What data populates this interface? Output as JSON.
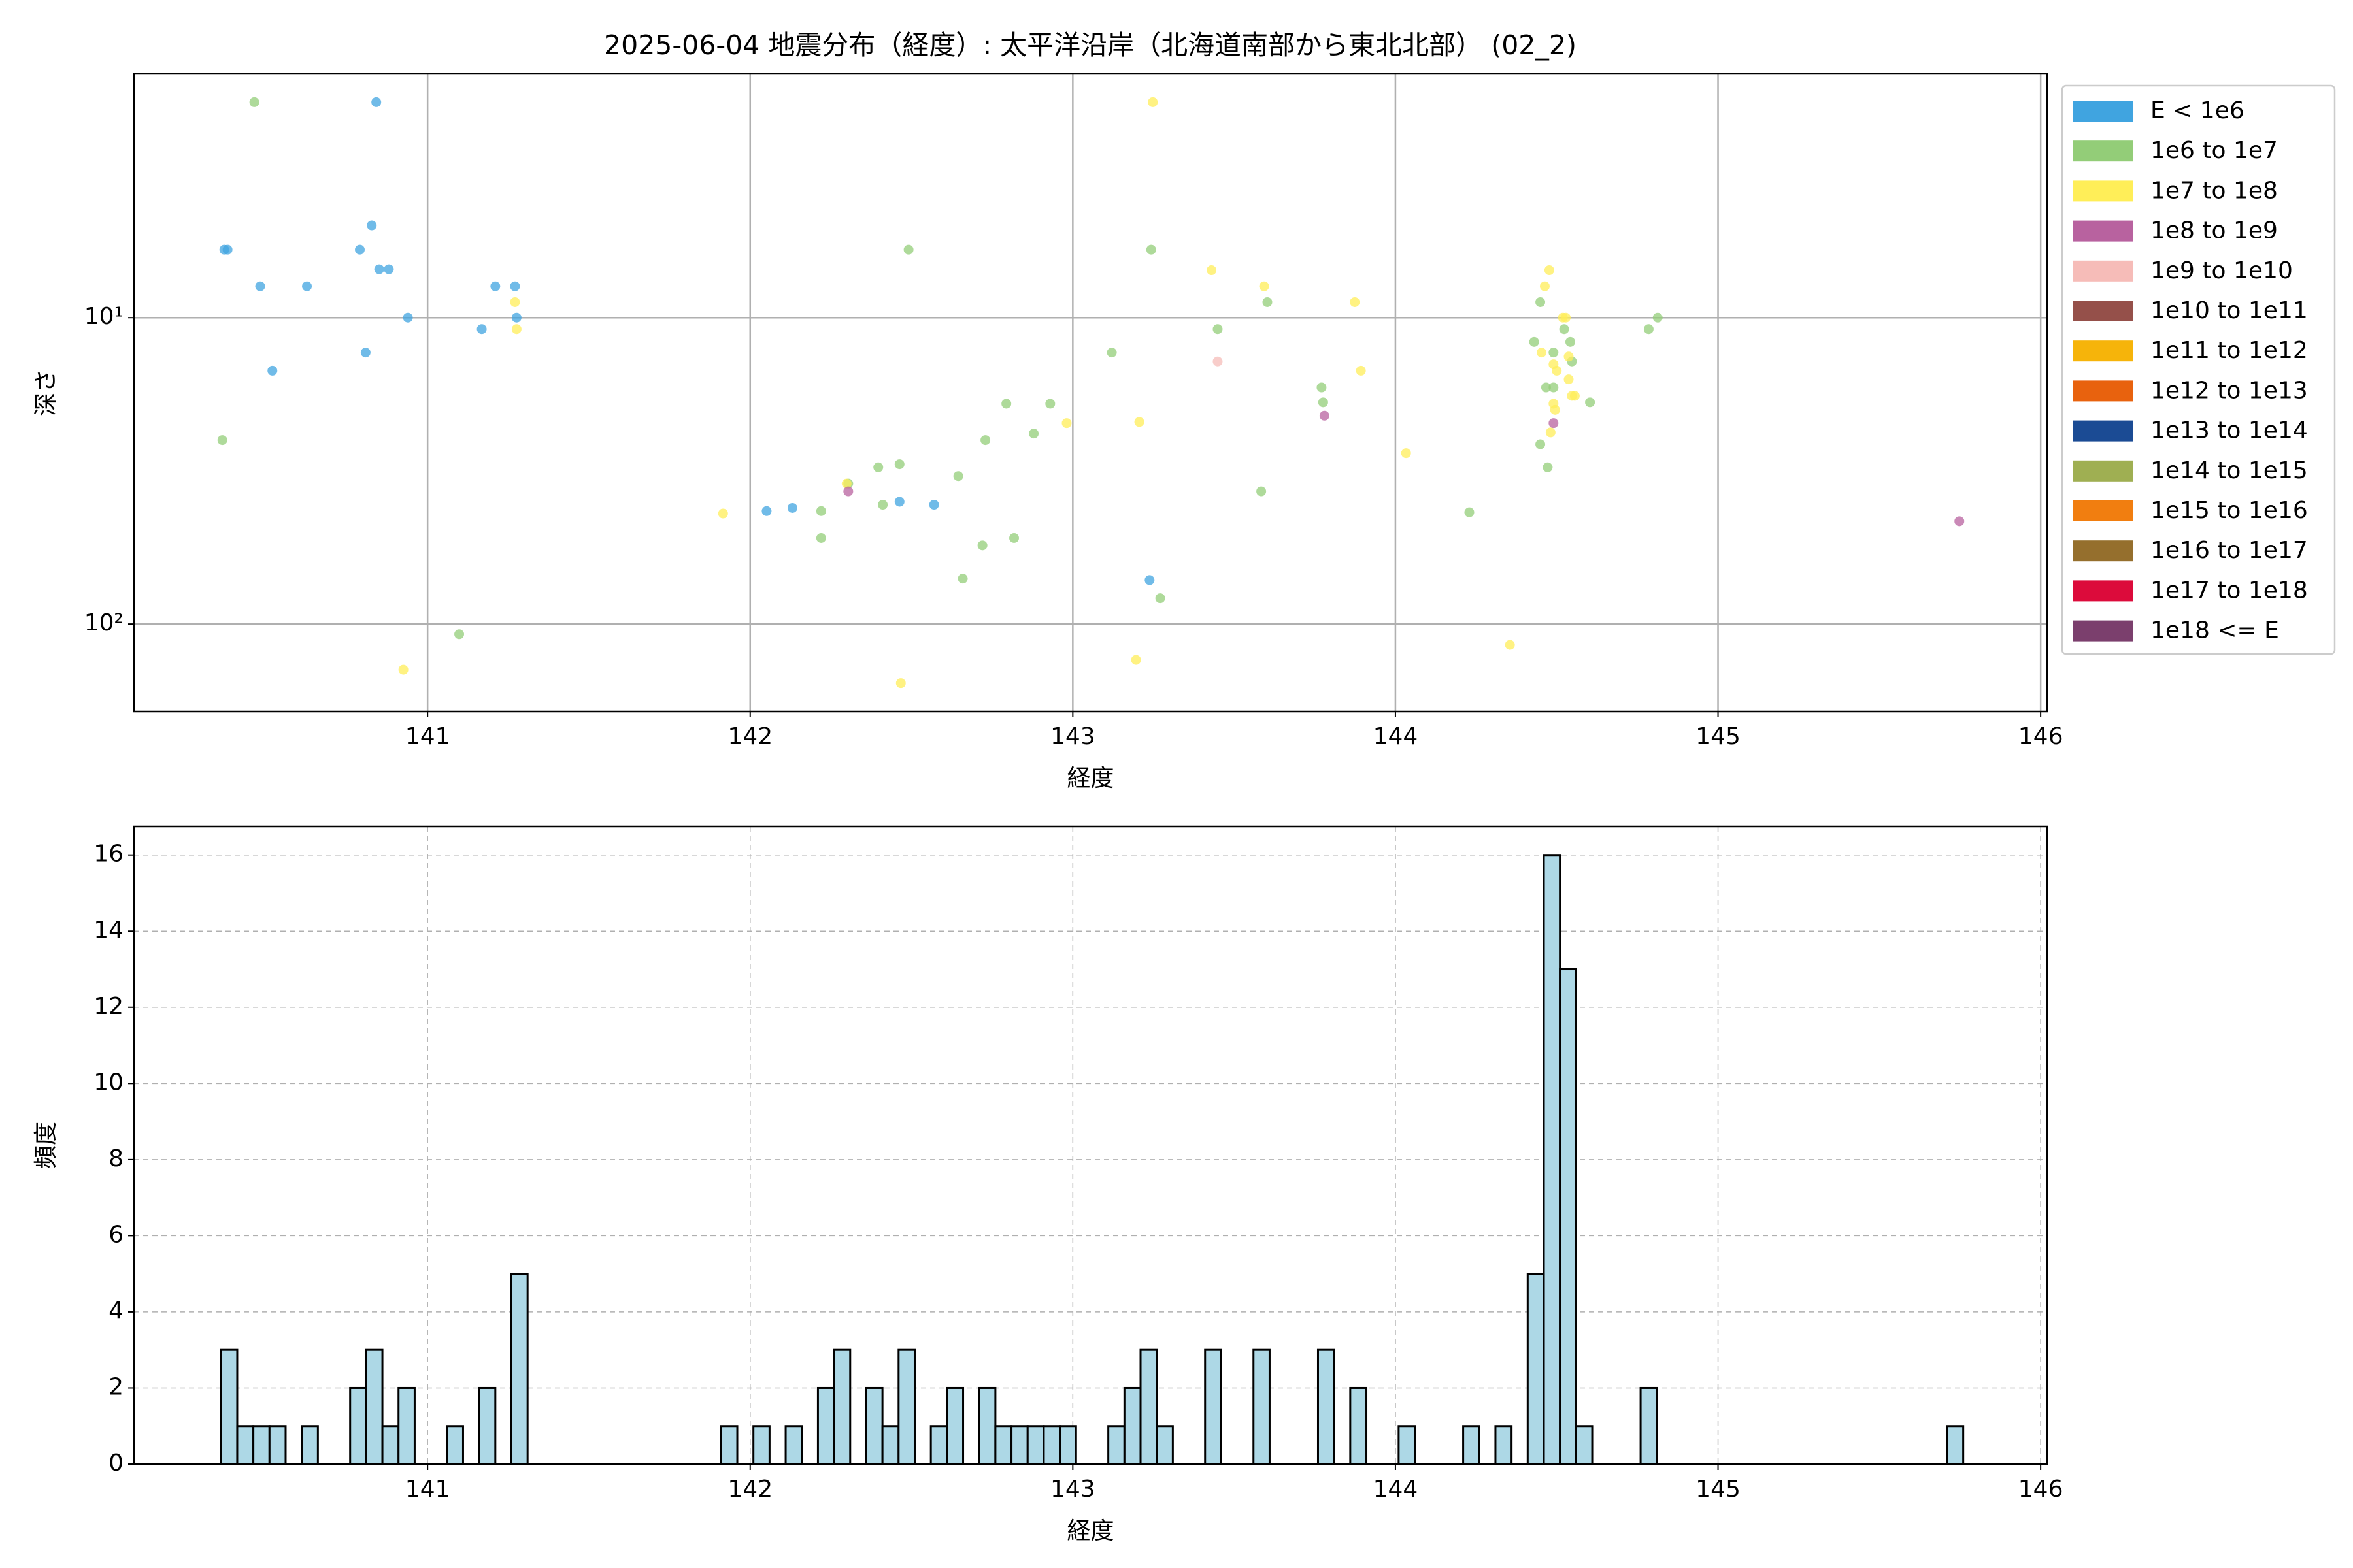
{
  "chart_data": [
    {
      "type": "scatter",
      "title": "2025-06-04 地震分布（経度）: 太平洋沿岸（北海道南部から東北北部） (02_2)",
      "xlabel": "経度",
      "ylabel": "深さ",
      "xlim": [
        140.09,
        146.02
      ],
      "ylim": [
        193,
        1.6
      ],
      "yscale": "log",
      "xticks": [
        141,
        142,
        143,
        144,
        145,
        146
      ],
      "yticks": [
        {
          "value": 10,
          "label": "10¹"
        },
        {
          "value": 100,
          "label": "10²"
        }
      ],
      "grid": true,
      "legend": "outside right",
      "series": [
        {
          "name": "E < 1e6",
          "color": "#40a4e0",
          "x": [
            140.37,
            140.38,
            140.841,
            140.827,
            140.79,
            140.85,
            140.88,
            140.481,
            140.626,
            140.939,
            140.519,
            140.808,
            141.168,
            141.21,
            141.271,
            141.276,
            142.051,
            142.131,
            142.463,
            142.57,
            143.238
          ],
          "values": [
            6.0,
            6.0,
            1.98,
            5.0,
            6.0,
            6.95,
            6.95,
            7.9,
            7.9,
            10.0,
            14.9,
            13.0,
            10.9,
            7.9,
            7.9,
            10.0,
            42.8,
            41.8,
            39.9,
            40.8,
            71.9
          ]
        },
        {
          "name": "1e6 to 1e7",
          "color": "#93cd78",
          "x": [
            140.463,
            140.364,
            141.098,
            142.22,
            142.22,
            142.304,
            142.397,
            142.411,
            142.463,
            142.491,
            142.645,
            142.659,
            142.72,
            142.729,
            142.794,
            142.818,
            142.879,
            142.93,
            143.121,
            143.243,
            143.271,
            143.449,
            143.584,
            143.603,
            143.771,
            143.776,
            144.229,
            144.43,
            144.449,
            144.467,
            144.449,
            144.472,
            144.49,
            144.49,
            144.523,
            144.542,
            144.547,
            144.603,
            144.785,
            144.813
          ],
          "values": [
            1.98,
            25.1,
            108,
            42.8,
            52.4,
            34.8,
            30.8,
            40.8,
            30.1,
            6.0,
            32.9,
            71.1,
            55.4,
            25.1,
            19.1,
            52.4,
            23.9,
            19.1,
            13.0,
            6.0,
            82.4,
            10.9,
            36.9,
            8.9,
            16.9,
            18.9,
            43.2,
            12.0,
            8.9,
            16.9,
            25.9,
            30.8,
            16.9,
            13.0,
            10.9,
            12.0,
            13.9,
            18.9,
            10.9,
            10.0
          ]
        },
        {
          "name": "1e7 to 1e8",
          "color": "#ffee58",
          "x": [
            140.925,
            141.271,
            141.276,
            141.916,
            142.299,
            142.467,
            142.981,
            143.206,
            143.196,
            143.248,
            143.43,
            143.593,
            143.874,
            143.893,
            144.033,
            144.355,
            144.463,
            144.477,
            144.453,
            144.49,
            144.5,
            144.519,
            144.528,
            144.537,
            144.537,
            144.556,
            144.49,
            144.495,
            144.481,
            144.547
          ],
          "values": [
            141,
            8.9,
            10.9,
            43.6,
            34.8,
            156,
            22.1,
            21.9,
            131,
            1.98,
            7.0,
            7.9,
            8.9,
            14.9,
            27.7,
            117,
            7.9,
            7.0,
            13.0,
            14.2,
            14.9,
            10.0,
            10.0,
            13.4,
            15.9,
            18.0,
            19.1,
            20.0,
            23.7,
            18.0
          ]
        },
        {
          "name": "1e8 to 1e9",
          "color": "#b8629f",
          "x": [
            142.304,
            143.78,
            144.49,
            145.748
          ],
          "values": [
            36.9,
            20.9,
            22.1,
            46.2
          ]
        },
        {
          "name": "1e9 to 1e10",
          "color": "#f6bcb8",
          "x": [
            143.449
          ],
          "values": [
            13.9
          ]
        },
        {
          "name": "1e10 to 1e11",
          "color": "#95504a",
          "x": [],
          "values": []
        },
        {
          "name": "1e11 to 1e12",
          "color": "#f6b40a",
          "x": [],
          "values": []
        },
        {
          "name": "1e12 to 1e13",
          "color": "#e8620e",
          "x": [],
          "values": []
        },
        {
          "name": "1e13 to 1e14",
          "color": "#1b4b94",
          "x": [],
          "values": []
        },
        {
          "name": "1e14 to 1e15",
          "color": "#9faf52",
          "x": [],
          "values": []
        },
        {
          "name": "1e15 to 1e16",
          "color": "#f17e10",
          "x": [],
          "values": []
        },
        {
          "name": "1e16 to 1e17",
          "color": "#956f2d",
          "x": [],
          "values": []
        },
        {
          "name": "1e17 to 1e18",
          "color": "#dc0b3b",
          "x": [],
          "values": []
        },
        {
          "name": "1e18 <= E",
          "color": "#7b3f6d",
          "x": [],
          "values": []
        }
      ]
    },
    {
      "type": "histogram",
      "xlabel": "経度",
      "ylabel": "頻度",
      "xlim": [
        140.09,
        146.02
      ],
      "ylim": [
        0,
        16.75
      ],
      "xticks": [
        141,
        142,
        143,
        144,
        145,
        146
      ],
      "yticks": [
        0,
        2,
        4,
        6,
        8,
        10,
        12,
        14,
        16
      ],
      "grid": "dashed",
      "color": "#add8e6",
      "edgecolor": "#000000",
      "bins": [
        140.36,
        140.41,
        140.46,
        140.51,
        140.56,
        140.61,
        140.66,
        140.71,
        140.76,
        140.81,
        140.86,
        140.91,
        140.96,
        141.01,
        141.06,
        141.11,
        141.16,
        141.21,
        141.26,
        141.31,
        141.36,
        141.41,
        141.46,
        141.51,
        141.56,
        141.61,
        141.66,
        141.71,
        141.76,
        141.81,
        141.86,
        141.91,
        141.96,
        142.01,
        142.06,
        142.11,
        142.16,
        142.21,
        142.26,
        142.31,
        142.36,
        142.41,
        142.46,
        142.51,
        142.56,
        142.61,
        142.66,
        142.71,
        142.76,
        142.81,
        142.86,
        142.91,
        142.96,
        143.01,
        143.06,
        143.11,
        143.16,
        143.21,
        143.26,
        143.31,
        143.36,
        143.41,
        143.46,
        143.51,
        143.56,
        143.61,
        143.66,
        143.71,
        143.76,
        143.81,
        143.86,
        143.91,
        143.96,
        144.01,
        144.06,
        144.11,
        144.16,
        144.21,
        144.26,
        144.31,
        144.36,
        144.41,
        144.46,
        144.51,
        144.56,
        144.61,
        144.66,
        144.71,
        144.76,
        144.81,
        144.86,
        144.91,
        144.96,
        145.01,
        145.06,
        145.11,
        145.16,
        145.21,
        145.26,
        145.31,
        145.36,
        145.41,
        145.46,
        145.51,
        145.56,
        145.61,
        145.66,
        145.71,
        145.76
      ],
      "values": [
        3,
        1,
        1,
        1,
        0,
        1,
        0,
        0,
        2,
        3,
        1,
        2,
        0,
        0,
        1,
        0,
        2,
        0,
        5,
        0,
        0,
        0,
        0,
        0,
        0,
        0,
        0,
        0,
        0,
        0,
        0,
        1,
        0,
        1,
        0,
        1,
        0,
        2,
        3,
        0,
        2,
        1,
        3,
        0,
        1,
        2,
        0,
        2,
        1,
        1,
        1,
        1,
        1,
        0,
        0,
        1,
        2,
        3,
        1,
        0,
        0,
        3,
        0,
        0,
        3,
        0,
        0,
        0,
        3,
        0,
        2,
        0,
        0,
        1,
        0,
        0,
        0,
        1,
        0,
        1,
        0,
        5,
        16,
        13,
        1,
        0,
        0,
        0,
        2,
        0,
        0,
        0,
        0,
        0,
        0,
        0,
        0,
        0,
        0,
        0,
        0,
        0,
        0,
        0,
        0,
        0,
        0,
        1
      ]
    }
  ]
}
